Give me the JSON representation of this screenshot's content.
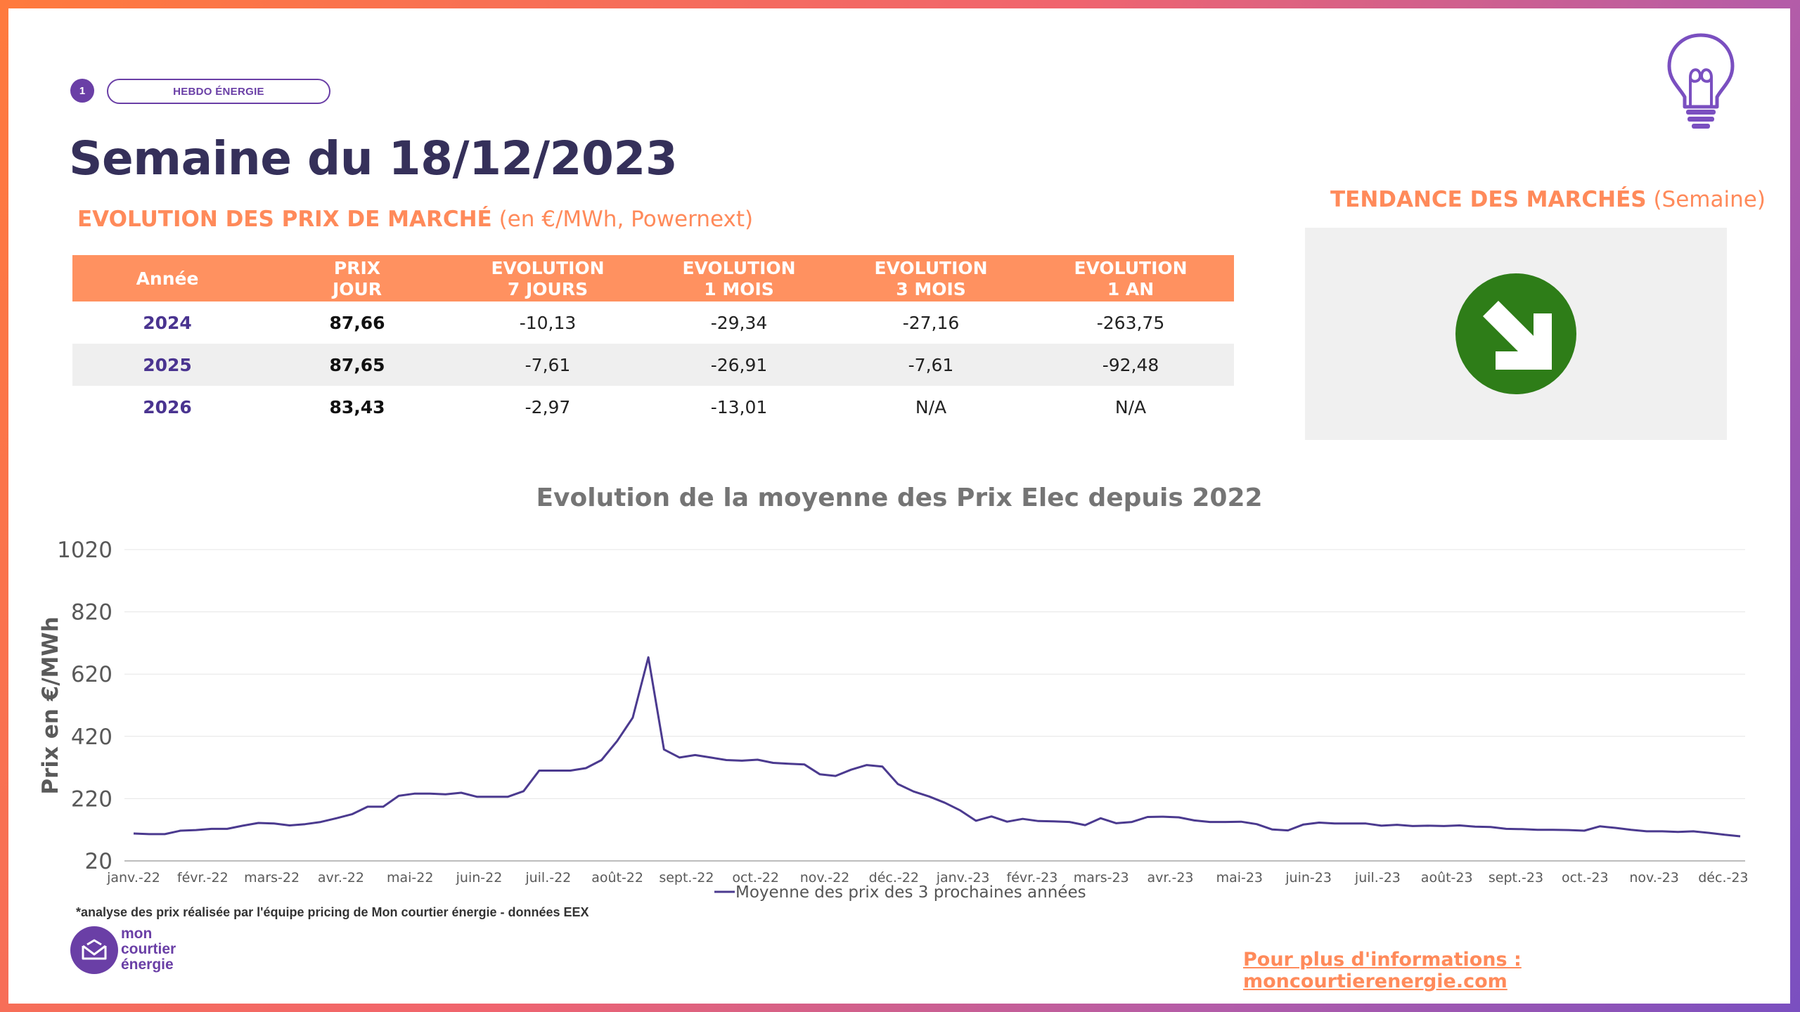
{
  "header": {
    "page_number": "1",
    "badge": "HEBDO ÉNERGIE",
    "title": "Semaine du 18/12/2023"
  },
  "prices": {
    "section_title": "EVOLUTION DES PRIX DE MARCHÉ",
    "section_subtitle": "(en €/MWh, Powernext)",
    "columns": [
      {
        "line1": "Année",
        "line2": ""
      },
      {
        "line1": "PRIX",
        "line2": "JOUR"
      },
      {
        "line1": "EVOLUTION",
        "line2": "7 JOURS"
      },
      {
        "line1": "EVOLUTION",
        "line2": "1 MOIS"
      },
      {
        "line1": "EVOLUTION",
        "line2": "3 MOIS"
      },
      {
        "line1": "EVOLUTION",
        "line2": "1 AN"
      }
    ],
    "rows": [
      {
        "year": "2024",
        "prix": "87,66",
        "e7": "-10,13",
        "e1m": "-29,34",
        "e3m": "-27,16",
        "e1a": "-263,75"
      },
      {
        "year": "2025",
        "prix": "87,65",
        "e7": "-7,61",
        "e1m": "-26,91",
        "e3m": "-7,61",
        "e1a": "-92,48"
      },
      {
        "year": "2026",
        "prix": "83,43",
        "e7": "-2,97",
        "e1m": "-13,01",
        "e3m": "N/A",
        "e1a": "N/A"
      }
    ]
  },
  "trend": {
    "title": "TENDANCE DES MARCHÉS",
    "subtitle": "(Semaine)",
    "direction": "down",
    "color": "#2e7d18",
    "icon": "arrow-down-right-icon"
  },
  "chart_data": {
    "type": "line",
    "title": "Evolution de la moyenne des Prix Elec depuis 2022",
    "ylabel": "Prix en €/MWh",
    "xlabel": "",
    "ylim": [
      20,
      1020
    ],
    "yticks": [
      "1020",
      "820",
      "620",
      "420",
      "220",
      "20"
    ],
    "xticks": [
      "janv.-22",
      "févr.-22",
      "mars-22",
      "avr.-22",
      "mai-22",
      "juin-22",
      "juil.-22",
      "août-22",
      "sept.-22",
      "oct.-22",
      "nov.-22",
      "déc.-22",
      "janv.-23",
      "févr.-23",
      "mars-23",
      "avr.-23",
      "mai-23",
      "juin-23",
      "juil.-23",
      "août-23",
      "sept.-23",
      "oct.-23",
      "nov.-23",
      "déc.-23"
    ],
    "grid": true,
    "legend_position": "bottom",
    "color": "#4b3a8f",
    "series": [
      {
        "name": "Moyenne des prix des 3 prochaines années",
        "values": [
          108,
          106,
          106,
          117,
          119,
          123,
          123,
          133,
          142,
          140,
          134,
          138,
          145,
          157,
          170,
          194,
          194,
          229,
          236,
          236,
          234,
          239,
          226,
          226,
          226,
          244,
          310,
          310,
          310,
          318,
          344,
          405,
          480,
          674,
          378,
          352,
          360,
          352,
          344,
          342,
          345,
          335,
          332,
          330,
          298,
          293,
          313,
          328,
          323,
          267,
          243,
          227,
          207,
          182,
          149,
          163,
          146,
          155,
          148,
          147,
          145,
          135,
          157,
          141,
          145,
          161,
          162,
          160,
          150,
          145,
          145,
          146,
          138,
          121,
          118,
          137,
          143,
          140,
          140,
          140,
          133,
          136,
          132,
          133,
          132,
          134,
          130,
          129,
          123,
          122,
          120,
          120,
          119,
          117,
          131,
          126,
          120,
          115,
          115,
          113,
          115,
          110,
          104,
          99
        ]
      }
    ]
  },
  "footer": {
    "footnote": "*analyse des prix réalisée par l'équipe pricing de Mon courtier énergie -  données EEX",
    "logo_line1": "mon",
    "logo_line2": "courtier",
    "logo_line3": "énergie",
    "link": "Pour plus d'informations : moncourtierenergie.com"
  }
}
